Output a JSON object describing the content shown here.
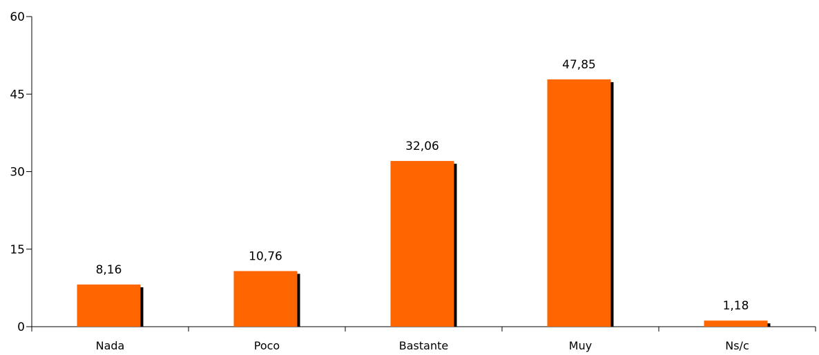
{
  "chart_data": {
    "type": "bar",
    "categories": [
      "Nada",
      "Poco",
      "Bastante",
      "Muy",
      "Ns/c"
    ],
    "values": [
      8.16,
      10.76,
      32.06,
      47.85,
      1.18
    ],
    "value_labels": [
      "8,16",
      "10,76",
      "32,06",
      "47,85",
      "1,18"
    ],
    "title": "",
    "xlabel": "",
    "ylabel": "",
    "ylim": [
      0,
      60
    ],
    "yticks": [
      0,
      15,
      30,
      45,
      60
    ],
    "ytick_labels": [
      "0",
      "15",
      "30",
      "45",
      "60"
    ],
    "grid": false,
    "legend": "none",
    "colors": {
      "bar": "#FF6600",
      "bar_shadow": "#000000",
      "axis": "#000000"
    }
  }
}
